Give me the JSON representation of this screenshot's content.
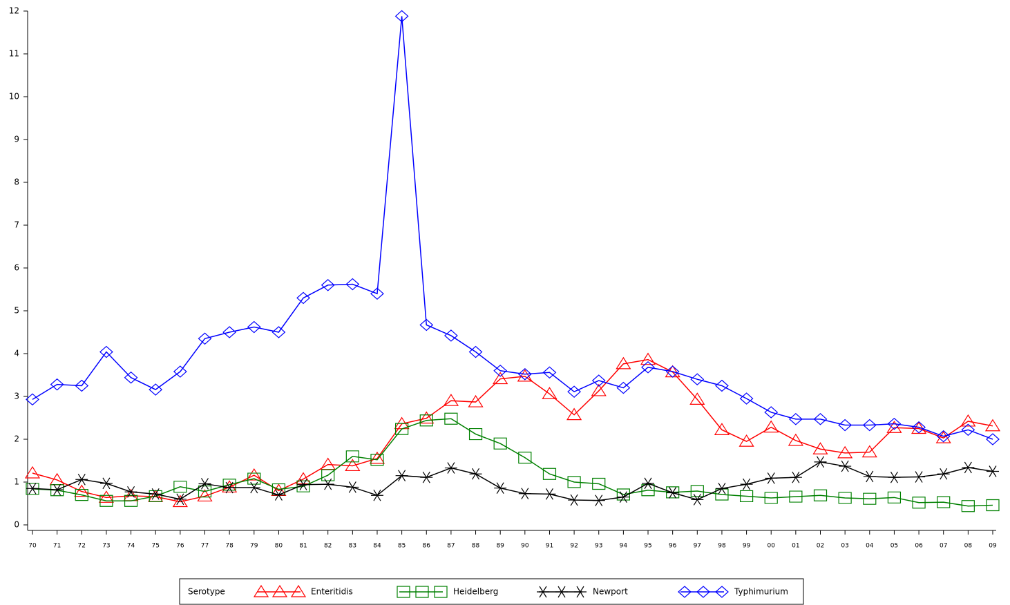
{
  "chart_data": {
    "type": "line",
    "categories": [
      "70",
      "71",
      "72",
      "73",
      "74",
      "75",
      "76",
      "77",
      "78",
      "79",
      "80",
      "81",
      "82",
      "83",
      "84",
      "85",
      "86",
      "87",
      "88",
      "89",
      "90",
      "91",
      "92",
      "93",
      "94",
      "95",
      "96",
      "97",
      "98",
      "99",
      "00",
      "01",
      "02",
      "03",
      "04",
      "05",
      "06",
      "07",
      "08",
      "09"
    ],
    "ylim": [
      0,
      12
    ],
    "yticks": [
      0,
      1,
      2,
      3,
      4,
      5,
      6,
      7,
      8,
      9,
      10,
      11,
      12
    ],
    "legend_title": "Serotype",
    "legend": "bottom",
    "series": [
      {
        "name": "Enteritidis",
        "color": "#ff0000",
        "marker": "triangle",
        "values": [
          1.21,
          1.05,
          0.78,
          0.64,
          0.68,
          0.66,
          0.54,
          0.67,
          0.88,
          1.16,
          0.8,
          1.07,
          1.41,
          1.38,
          1.55,
          2.36,
          2.49,
          2.9,
          2.87,
          3.41,
          3.47,
          3.06,
          2.57,
          3.13,
          3.76,
          3.86,
          3.57,
          2.93,
          2.22,
          1.95,
          2.28,
          1.97,
          1.77,
          1.68,
          1.7,
          2.27,
          2.25,
          2.03,
          2.42,
          2.31
        ]
      },
      {
        "name": "Heidelberg",
        "color": "#008000",
        "marker": "square",
        "values": [
          0.84,
          0.81,
          0.7,
          0.56,
          0.56,
          0.67,
          0.89,
          0.78,
          0.94,
          1.08,
          0.83,
          0.9,
          1.16,
          1.6,
          1.52,
          2.24,
          2.44,
          2.48,
          2.12,
          1.9,
          1.57,
          1.19,
          1.0,
          0.96,
          0.71,
          0.81,
          0.76,
          0.79,
          0.71,
          0.67,
          0.63,
          0.66,
          0.69,
          0.63,
          0.61,
          0.64,
          0.52,
          0.53,
          0.44,
          0.46
        ]
      },
      {
        "name": "Newport",
        "color": "#000000",
        "marker": "star",
        "values": [
          0.85,
          0.82,
          1.06,
          0.97,
          0.77,
          0.72,
          0.6,
          0.96,
          0.87,
          0.87,
          0.7,
          0.94,
          0.95,
          0.88,
          0.69,
          1.15,
          1.11,
          1.33,
          1.19,
          0.86,
          0.73,
          0.72,
          0.58,
          0.57,
          0.65,
          0.97,
          0.75,
          0.59,
          0.85,
          0.95,
          1.09,
          1.11,
          1.47,
          1.37,
          1.13,
          1.11,
          1.12,
          1.19,
          1.34,
          1.25
        ]
      },
      {
        "name": "Typhimurium",
        "color": "#0000ff",
        "marker": "diamond",
        "values": [
          2.93,
          3.28,
          3.25,
          4.04,
          3.44,
          3.16,
          3.58,
          4.35,
          4.5,
          4.62,
          4.5,
          5.3,
          5.6,
          5.62,
          5.4,
          11.88,
          4.67,
          4.42,
          4.04,
          3.6,
          3.52,
          3.56,
          3.11,
          3.37,
          3.2,
          3.68,
          3.58,
          3.4,
          3.25,
          2.95,
          2.63,
          2.47,
          2.47,
          2.33,
          2.33,
          2.36,
          2.28,
          2.07,
          2.22,
          2.0
        ]
      }
    ]
  }
}
